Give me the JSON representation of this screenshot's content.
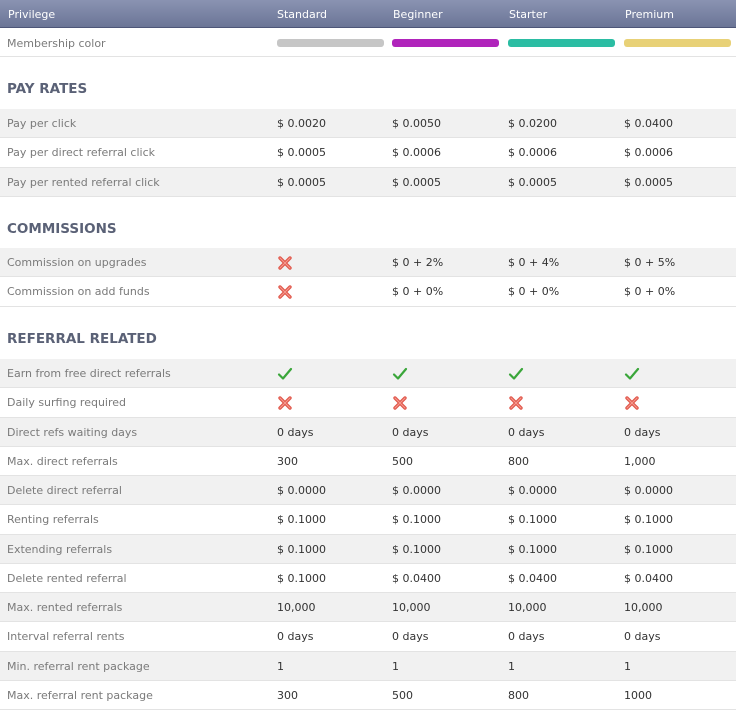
{
  "header": {
    "privilege": "Privilege",
    "levels": [
      "Standard",
      "Beginner",
      "Starter",
      "Premium"
    ]
  },
  "membership": {
    "label": "Membership color",
    "colors": [
      "#c6c6c6",
      "#b024bb",
      "#2bbda3",
      "#e8d177"
    ]
  },
  "sections": [
    {
      "title": "PAY RATES",
      "rows": [
        {
          "label": "Pay per click",
          "values": [
            "$ 0.0020",
            "$ 0.0050",
            "$ 0.0200",
            "$ 0.0400"
          ]
        },
        {
          "label": "Pay per direct referral click",
          "values": [
            "$ 0.0005",
            "$ 0.0006",
            "$ 0.0006",
            "$ 0.0006"
          ]
        },
        {
          "label": "Pay per rented referral click",
          "values": [
            "$ 0.0005",
            "$ 0.0005",
            "$ 0.0005",
            "$ 0.0005"
          ]
        }
      ]
    },
    {
      "title": "COMMISSIONS",
      "rows": [
        {
          "label": "Commission on upgrades",
          "values": [
            "x-icon",
            "$ 0 + 2%",
            "$ 0 + 4%",
            "$ 0 + 5%"
          ]
        },
        {
          "label": "Commission on add funds",
          "values": [
            "x-icon",
            "$ 0 + 0%",
            "$ 0 + 0%",
            "$ 0 + 0%"
          ]
        }
      ]
    },
    {
      "title": "REFERRAL RELATED",
      "rows": [
        {
          "label": "Earn from free direct referrals",
          "values": [
            "check-icon",
            "check-icon",
            "check-icon",
            "check-icon"
          ]
        },
        {
          "label": "Daily surfing required",
          "values": [
            "x-icon",
            "x-icon",
            "x-icon",
            "x-icon"
          ]
        },
        {
          "label": "Direct refs waiting days",
          "values": [
            "0 days",
            "0 days",
            "0 days",
            "0 days"
          ]
        },
        {
          "label": "Max. direct referrals",
          "values": [
            "300",
            "500",
            "800",
            "1,000"
          ]
        },
        {
          "label": "Delete direct referral",
          "values": [
            "$ 0.0000",
            "$ 0.0000",
            "$ 0.0000",
            "$ 0.0000"
          ]
        },
        {
          "label": "Renting referrals",
          "values": [
            "$ 0.1000",
            "$ 0.1000",
            "$ 0.1000",
            "$ 0.1000"
          ]
        },
        {
          "label": "Extending referrals",
          "values": [
            "$ 0.1000",
            "$ 0.1000",
            "$ 0.1000",
            "$ 0.1000"
          ]
        },
        {
          "label": "Delete rented referral",
          "values": [
            "$ 0.1000",
            "$ 0.0400",
            "$ 0.0400",
            "$ 0.0400"
          ]
        },
        {
          "label": "Max. rented referrals",
          "values": [
            "10,000",
            "10,000",
            "10,000",
            "10,000"
          ]
        },
        {
          "label": "Interval referral rents",
          "values": [
            "0 days",
            "0 days",
            "0 days",
            "0 days"
          ]
        },
        {
          "label": "Min. referral rent package",
          "values": [
            "1",
            "1",
            "1",
            "1"
          ]
        },
        {
          "label": "Max. referral rent package",
          "values": [
            "300",
            "500",
            "800",
            "1000"
          ]
        }
      ]
    }
  ]
}
